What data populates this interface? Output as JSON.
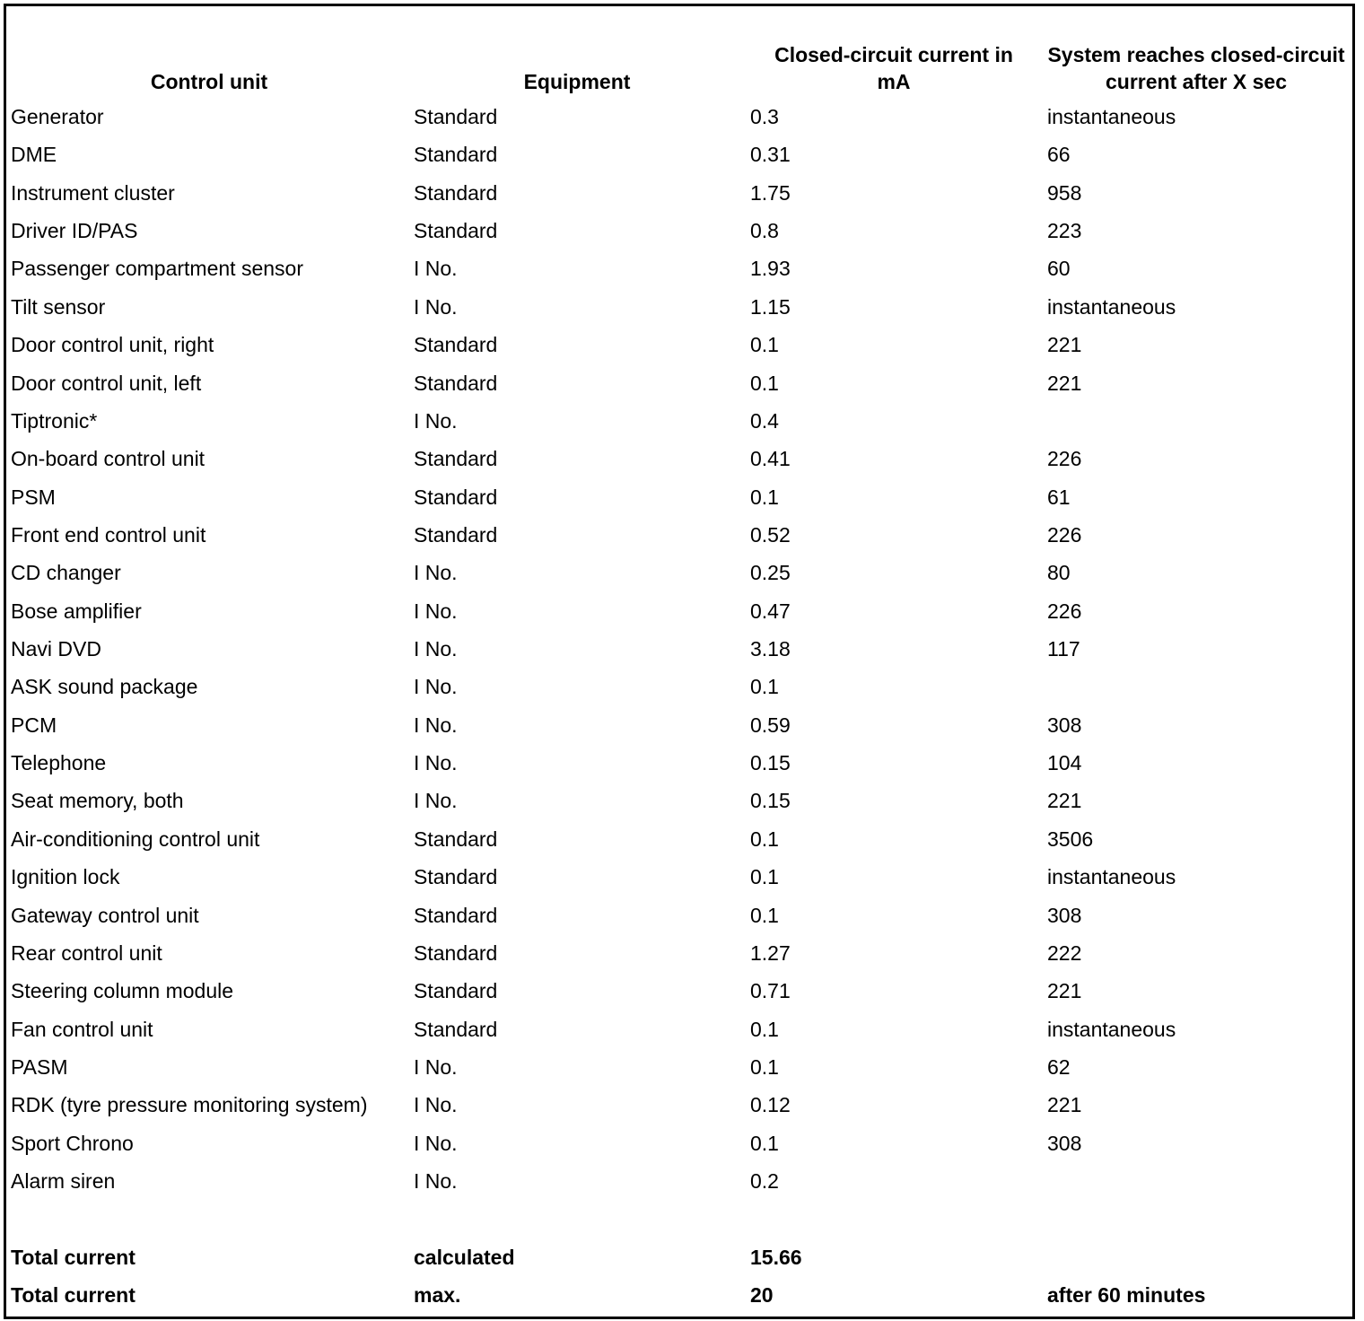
{
  "table": {
    "header": [
      "Control unit",
      "Equipment",
      "Closed-circuit current in mA",
      "System reaches closed-circuit current after X sec"
    ],
    "rows": [
      [
        "Generator",
        "Standard",
        "0.3",
        "instantaneous"
      ],
      [
        "DME",
        "Standard",
        "0.31",
        "66"
      ],
      [
        "Instrument cluster",
        "Standard",
        "1.75",
        "958"
      ],
      [
        "Driver ID/PAS",
        "Standard",
        "0.8",
        "223"
      ],
      [
        "Passenger compartment sensor",
        "I No.",
        "1.93",
        "60"
      ],
      [
        "Tilt sensor",
        "I No.",
        "1.15",
        "instantaneous"
      ],
      [
        "Door control unit, right",
        "Standard",
        "0.1",
        "221"
      ],
      [
        "Door control unit, left",
        "Standard",
        "0.1",
        "221"
      ],
      [
        "Tiptronic*",
        "I No.",
        "0.4",
        null
      ],
      [
        "On-board control unit",
        "Standard",
        "0.41",
        "226"
      ],
      [
        "PSM",
        "Standard",
        "0.1",
        "61"
      ],
      [
        "Front end control unit",
        "Standard",
        "0.52",
        "226"
      ],
      [
        "CD changer",
        "I No.",
        "0.25",
        "80"
      ],
      [
        "Bose amplifier",
        "I No.",
        "0.47",
        "226"
      ],
      [
        "Navi DVD",
        "I No.",
        "3.18",
        "117"
      ],
      [
        "ASK sound package",
        "I No.",
        "0.1",
        null
      ],
      [
        "PCM",
        "I No.",
        "0.59",
        "308"
      ],
      [
        "Telephone",
        "I No.",
        "0.15",
        "104"
      ],
      [
        "Seat memory, both",
        "I No.",
        "0.15",
        "221"
      ],
      [
        "Air-conditioning control unit",
        "Standard",
        "0.1",
        "3506"
      ],
      [
        "Ignition lock",
        "Standard",
        "0.1",
        "instantaneous"
      ],
      [
        "Gateway control unit",
        "Standard",
        "0.1",
        "308"
      ],
      [
        "Rear control unit",
        "Standard",
        "1.27",
        "222"
      ],
      [
        "Steering column module",
        "Standard",
        "0.71",
        "221"
      ],
      [
        "Fan control unit",
        "Standard",
        "0.1",
        "instantaneous"
      ],
      [
        "PASM",
        "I No.",
        "0.1",
        "62"
      ],
      [
        "RDK (tyre pressure monitoring system)",
        "I No.",
        "0.12",
        "221"
      ],
      [
        "Sport Chrono",
        "I No.",
        "0.1",
        "308"
      ],
      [
        "Alarm siren",
        "I No.",
        "0.2",
        null
      ]
    ],
    "totals": [
      [
        "Total current",
        "calculated",
        "15.66",
        null
      ],
      [
        "Total current",
        "max.",
        "20",
        "after 60 minutes"
      ]
    ]
  }
}
